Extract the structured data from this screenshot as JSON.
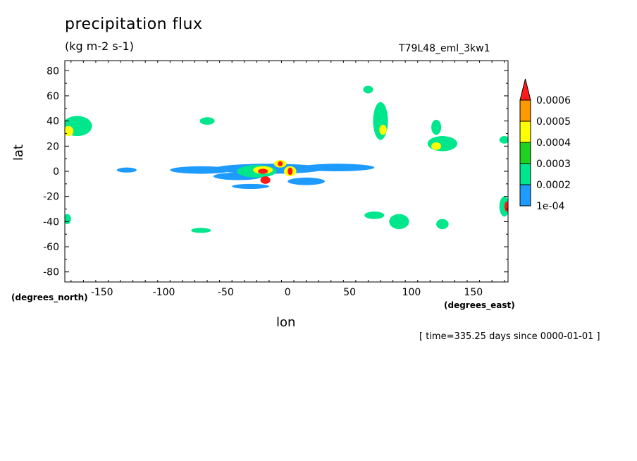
{
  "chart_data": {
    "type": "heatmap",
    "title": "precipitation flux",
    "units": "(kg m-2 s-1)",
    "dataset": "T79L48_eml_3kw1",
    "xlabel": "lon",
    "ylabel": "lat",
    "x_units": "(degrees_east)",
    "y_units": "(degrees_north)",
    "timestamp": "[ time=335.25 days since 0000-01-01 ]",
    "xlim": [
      -180,
      178
    ],
    "ylim": [
      -88,
      88
    ],
    "x_ticks": [
      -150,
      -100,
      -50,
      0,
      50,
      100,
      150
    ],
    "y_ticks": [
      80,
      60,
      40,
      20,
      0,
      -20,
      -40,
      -60,
      -80
    ],
    "colorbar": {
      "labels": [
        "1e-04",
        "0.0002",
        "0.0003",
        "0.0004",
        "0.0005",
        "0.0006"
      ],
      "colors": [
        "#1e9bff",
        "#00e68c",
        "#1fd21f",
        "#ffff00",
        "#ff9900",
        "#ff1a1a"
      ]
    },
    "regions": [
      {
        "lon": -15,
        "lat": 2,
        "rlon": 45,
        "rlat": 4,
        "level": 1
      },
      {
        "lon": -70,
        "lat": 1,
        "rlon": 25,
        "rlat": 3,
        "level": 1
      },
      {
        "lon": 40,
        "lat": 3,
        "rlon": 30,
        "rlat": 3,
        "level": 1
      },
      {
        "lon": -40,
        "lat": -4,
        "rlon": 20,
        "rlat": 3,
        "level": 1
      },
      {
        "lon": -25,
        "lat": 0,
        "rlon": 16,
        "rlat": 5,
        "level": 2
      },
      {
        "lon": -20,
        "lat": 1,
        "rlon": 8,
        "rlat": 3,
        "level": 4
      },
      {
        "lon": -20,
        "lat": 0,
        "rlon": 4,
        "rlat": 2,
        "level": 6
      },
      {
        "lon": -18,
        "lat": -7,
        "rlon": 4,
        "rlat": 3,
        "level": 6
      },
      {
        "lon": -6,
        "lat": 6,
        "rlon": 5,
        "rlat": 3,
        "level": 4
      },
      {
        "lon": -6,
        "lat": 6,
        "rlon": 2,
        "rlat": 2,
        "level": 6
      },
      {
        "lon": 2,
        "lat": 0,
        "rlon": 5,
        "rlat": 4,
        "level": 4
      },
      {
        "lon": 2,
        "lat": 0,
        "rlon": 2,
        "rlat": 3,
        "level": 6
      },
      {
        "lon": -170,
        "lat": 36,
        "rlon": 12,
        "rlat": 8,
        "level": 2
      },
      {
        "lon": -177,
        "lat": 32,
        "rlon": 4,
        "rlat": 4,
        "level": 4
      },
      {
        "lon": -65,
        "lat": 40,
        "rlon": 6,
        "rlat": 3,
        "level": 2
      },
      {
        "lon": 75,
        "lat": 40,
        "rlon": 6,
        "rlat": 15,
        "level": 2
      },
      {
        "lon": 77,
        "lat": 33,
        "rlon": 3,
        "rlat": 4,
        "level": 4
      },
      {
        "lon": 65,
        "lat": 65,
        "rlon": 4,
        "rlat": 3,
        "level": 2
      },
      {
        "lon": 125,
        "lat": 22,
        "rlon": 12,
        "rlat": 6,
        "level": 2
      },
      {
        "lon": 120,
        "lat": 20,
        "rlon": 4,
        "rlat": 3,
        "level": 4
      },
      {
        "lon": 120,
        "lat": 35,
        "rlon": 4,
        "rlat": 6,
        "level": 2
      },
      {
        "lon": 175,
        "lat": 25,
        "rlon": 4,
        "rlat": 3,
        "level": 2
      },
      {
        "lon": 175,
        "lat": -28,
        "rlon": 4,
        "rlat": 8,
        "level": 2
      },
      {
        "lon": 177,
        "lat": -28,
        "rlon": 2,
        "rlat": 4,
        "level": 6
      },
      {
        "lon": -178,
        "lat": -38,
        "rlon": 3,
        "rlat": 4,
        "level": 2
      },
      {
        "lon": 90,
        "lat": -40,
        "rlon": 8,
        "rlat": 6,
        "level": 2
      },
      {
        "lon": 70,
        "lat": -35,
        "rlon": 8,
        "rlat": 3,
        "level": 2
      },
      {
        "lon": 125,
        "lat": -42,
        "rlon": 5,
        "rlat": 4,
        "level": 2
      },
      {
        "lon": -70,
        "lat": -47,
        "rlon": 8,
        "rlat": 2,
        "level": 2
      },
      {
        "lon": -130,
        "lat": 1,
        "rlon": 8,
        "rlat": 2,
        "level": 1
      },
      {
        "lon": -30,
        "lat": -12,
        "rlon": 15,
        "rlat": 2,
        "level": 1
      },
      {
        "lon": 15,
        "lat": -8,
        "rlon": 15,
        "rlat": 3,
        "level": 1
      }
    ]
  }
}
